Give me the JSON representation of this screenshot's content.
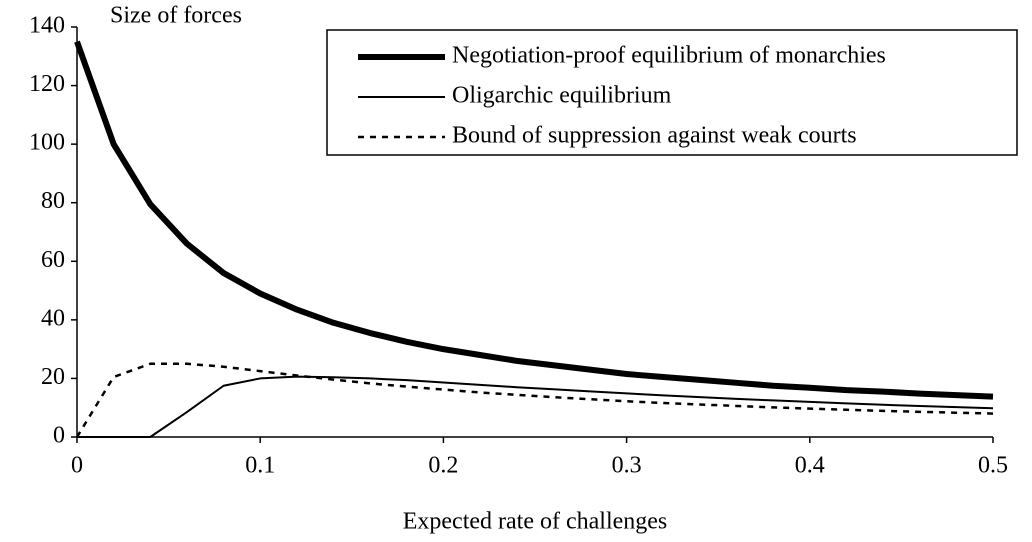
{
  "chart_data": {
    "type": "line",
    "title": "Size of forces",
    "x_label": "Expected rate of challenges",
    "x": [
      0,
      0.02,
      0.04,
      0.06,
      0.08,
      0.1,
      0.12,
      0.14,
      0.16,
      0.18,
      0.2,
      0.22,
      0.24,
      0.26,
      0.28,
      0.3,
      0.32,
      0.34,
      0.36,
      0.38,
      0.4,
      0.42,
      0.44,
      0.46,
      0.48,
      0.5
    ],
    "series": [
      {
        "name": "Negotiation-proof equilibrium of monarchies",
        "color": "#000000",
        "values": [
          135,
          100,
          79.5,
          66,
          56,
          49,
          43.5,
          39,
          35.5,
          32.5,
          30,
          28,
          26,
          24.5,
          23,
          21.5,
          20.5,
          19.5,
          18.5,
          17.5,
          16.8,
          16,
          15.5,
          14.8,
          14.3,
          13.8
        ]
      },
      {
        "name": "Oligarchic equilibrium",
        "color": "#000000",
        "values": [
          0,
          0,
          0,
          8.5,
          17.5,
          20,
          20.6,
          20.4,
          20,
          19.4,
          18.6,
          17.8,
          17,
          16.3,
          15.6,
          14.9,
          14.2,
          13.6,
          13,
          12.5,
          12,
          11.5,
          11,
          10.6,
          10.2,
          9.8
        ]
      },
      {
        "name": "Bound of suppression against weak courts",
        "color": "#000000",
        "values": [
          0,
          20.5,
          25,
          25,
          24,
          22.5,
          21,
          19.6,
          18.3,
          17.2,
          16.2,
          15.2,
          14.4,
          13.6,
          12.9,
          12.2,
          11.6,
          11.1,
          10.6,
          10.1,
          9.7,
          9.3,
          8.9,
          8.6,
          8.3,
          8
        ]
      }
    ],
    "xlim": [
      0,
      0.5
    ],
    "xticks": [
      0,
      0.1,
      0.2,
      0.3,
      0.4,
      0.5
    ],
    "ylim": [
      0,
      140
    ],
    "yticks": [
      0,
      20,
      40,
      60,
      80,
      100,
      120,
      140
    ]
  }
}
